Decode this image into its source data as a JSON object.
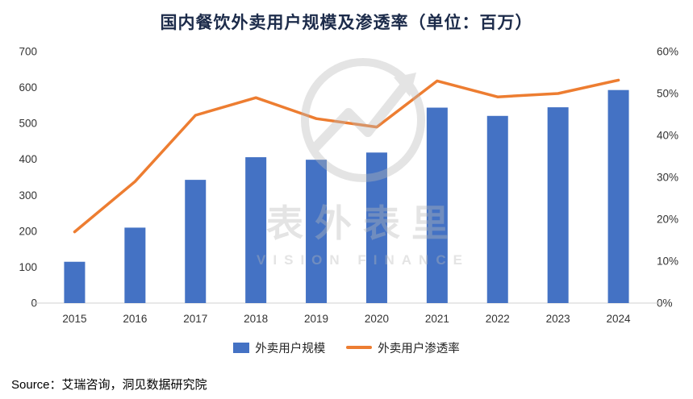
{
  "chart_data": {
    "type": "bar",
    "title": "国内餐饮外卖用户规模及渗透率（单位：百万）",
    "categories": [
      "2015",
      "2016",
      "2017",
      "2018",
      "2019",
      "2020",
      "2021",
      "2022",
      "2023",
      "2024"
    ],
    "series": [
      {
        "name": "外卖用户规模",
        "type": "bar",
        "axis": "left",
        "color": "#4472C4",
        "values": [
          115,
          210,
          343,
          406,
          399,
          419,
          544,
          521,
          545,
          593
        ]
      },
      {
        "name": "外卖用户渗透率",
        "type": "line",
        "axis": "right",
        "color": "#ED7D31",
        "values": [
          17,
          29,
          44.8,
          49,
          44,
          42,
          53,
          49.2,
          50,
          53.2
        ]
      }
    ],
    "left_axis": {
      "min": 0,
      "max": 700,
      "step": 100,
      "ticks": [
        "0",
        "100",
        "200",
        "300",
        "400",
        "500",
        "600",
        "700"
      ]
    },
    "right_axis": {
      "min": 0,
      "max": 60,
      "step": 10,
      "ticks": [
        "0%",
        "10%",
        "20%",
        "30%",
        "40%",
        "50%",
        "60%"
      ]
    },
    "legend_position": "bottom",
    "grid": false
  },
  "watermark": {
    "title": "表外表里",
    "subtitle": "VISION FINANCE"
  },
  "source": "Source：艾瑞咨询，洞见数据研究院"
}
